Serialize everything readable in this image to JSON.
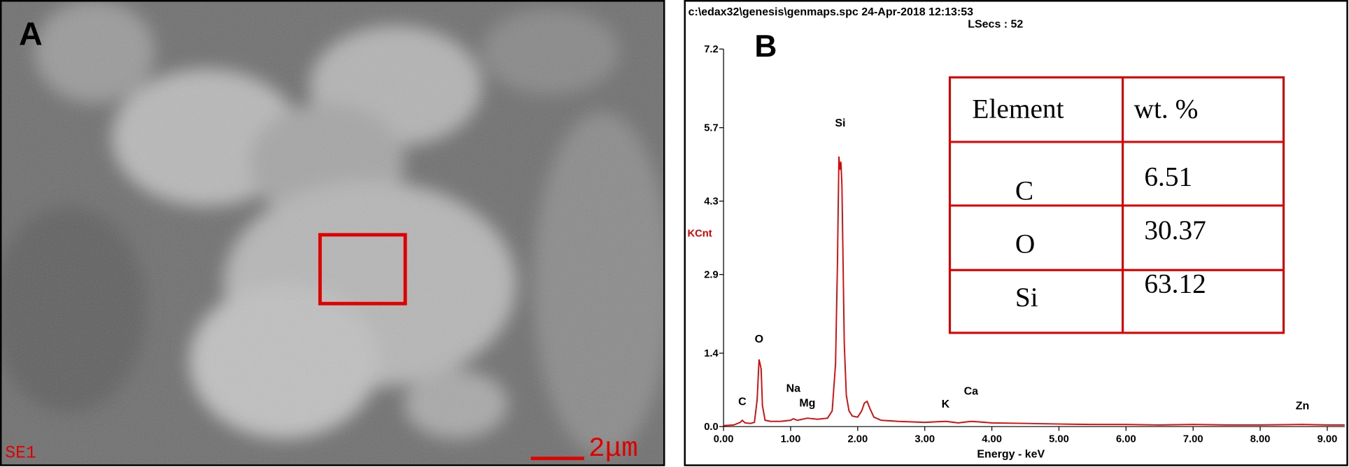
{
  "panel_a": {
    "label": "A",
    "detector": "SE1",
    "scale": "2μm"
  },
  "panel_b": {
    "label": "B"
  },
  "chart_data": {
    "type": "line",
    "title": "c:\\edax32\\genesis\\genmaps.spc  24-Apr-2018 12:13:53",
    "subtitle": "LSecs : 52",
    "y_label": "KCnt",
    "x_label": "Energy - keV",
    "color": "#e00000",
    "xlim": [
      0,
      9.26
    ],
    "ylim": [
      0,
      7.2
    ],
    "xticks": [
      {
        "value": 0,
        "label": "0.00"
      },
      {
        "value": 1,
        "label": "1.00"
      },
      {
        "value": 2,
        "label": "2.00"
      },
      {
        "value": 3,
        "label": "3.00"
      },
      {
        "value": 4,
        "label": "4.00"
      },
      {
        "value": 5,
        "label": "5.00"
      },
      {
        "value": 6,
        "label": "6.00"
      },
      {
        "value": 7,
        "label": "7.00"
      },
      {
        "value": 8,
        "label": "8.00"
      },
      {
        "value": 9,
        "label": "9.00"
      }
    ],
    "yticks": [
      {
        "value": 0,
        "label": "0.0"
      },
      1.4,
      2.9,
      4.3,
      5.7,
      7.2
    ],
    "x": [
      0,
      0.15,
      0.25,
      0.28,
      0.32,
      0.4,
      0.46,
      0.5,
      0.53,
      0.56,
      0.58,
      0.62,
      0.7,
      0.85,
      1,
      1.04,
      1.1,
      1.25,
      1.4,
      1.55,
      1.62,
      1.67,
      1.7,
      1.72,
      1.735,
      1.75,
      1.765,
      1.78,
      1.8,
      1.83,
      1.87,
      1.92,
      2,
      2.06,
      2.1,
      2.14,
      2.18,
      2.24,
      2.35,
      2.6,
      3,
      3.31,
      3.5,
      3.69,
      4,
      4.5,
      5,
      5.5,
      6,
      6.5,
      7,
      7.5,
      8,
      8.63,
      9,
      9.26
    ],
    "values": [
      0.02,
      0.03,
      0.08,
      0.12,
      0.07,
      0.06,
      0.08,
      0.5,
      1.28,
      1.1,
      0.4,
      0.12,
      0.1,
      0.1,
      0.12,
      0.15,
      0.12,
      0.16,
      0.14,
      0.16,
      0.3,
      1.2,
      3.2,
      5.15,
      4.9,
      5.05,
      4.6,
      3.3,
      1.6,
      0.6,
      0.3,
      0.2,
      0.18,
      0.3,
      0.45,
      0.48,
      0.35,
      0.18,
      0.12,
      0.1,
      0.08,
      0.1,
      0.07,
      0.1,
      0.07,
      0.06,
      0.05,
      0.04,
      0.04,
      0.03,
      0.04,
      0.03,
      0.03,
      0.04,
      0.03,
      0.03
    ],
    "annotations": [
      {
        "text": "C",
        "x": 0.28,
        "y": 0.41
      },
      {
        "text": "O",
        "x": 0.53,
        "y": 1.6
      },
      {
        "text": "Na",
        "x": 1.04,
        "y": 0.66
      },
      {
        "text": "Mg",
        "x": 1.25,
        "y": 0.38
      },
      {
        "text": "Si",
        "x": 1.74,
        "y": 5.72
      },
      {
        "text": "K",
        "x": 3.31,
        "y": 0.36
      },
      {
        "text": "Ca",
        "x": 3.69,
        "y": 0.61
      },
      {
        "text": "Zn",
        "x": 8.63,
        "y": 0.33
      }
    ]
  },
  "table": {
    "header": [
      "Element",
      "wt. %"
    ],
    "rows": [
      [
        "C",
        "6.51"
      ],
      [
        "O",
        "30.37"
      ],
      [
        "Si",
        "63.12"
      ]
    ]
  }
}
